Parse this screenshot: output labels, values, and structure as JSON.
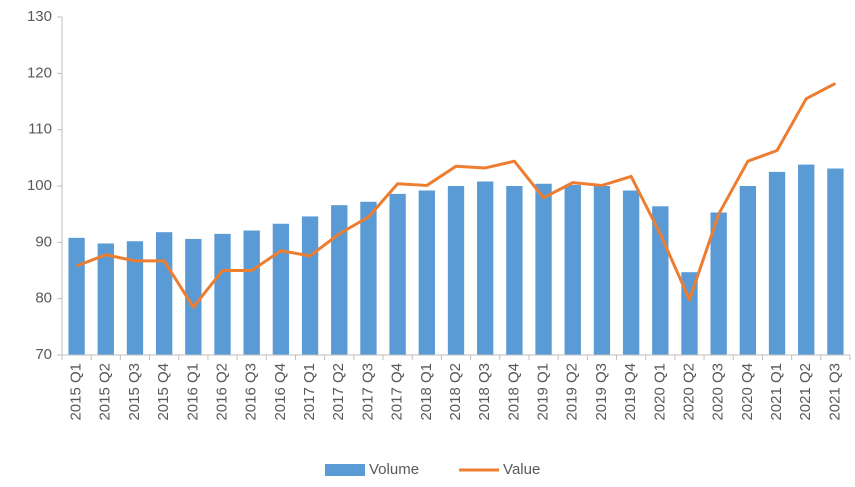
{
  "chart_data": {
    "type": "bar",
    "categories": [
      "2015 Q1",
      "2015 Q2",
      "2015 Q3",
      "2015 Q4",
      "2016 Q1",
      "2016 Q2",
      "2016 Q3",
      "2016 Q4",
      "2017 Q1",
      "2017 Q2",
      "2017 Q3",
      "2017 Q4",
      "2018 Q1",
      "2018 Q2",
      "2018 Q3",
      "2018 Q4",
      "2019 Q1",
      "2019 Q2",
      "2019 Q3",
      "2019 Q4",
      "2020 Q1",
      "2020 Q2",
      "2020 Q3",
      "2020 Q4",
      "2021 Q1",
      "2021 Q2",
      "2021 Q3"
    ],
    "series": [
      {
        "name": "Volume",
        "type": "bar",
        "color": "#5b9bd5",
        "values": [
          90.8,
          89.8,
          90.2,
          91.8,
          90.6,
          91.5,
          92.1,
          93.3,
          94.6,
          96.6,
          97.2,
          98.6,
          99.2,
          100.0,
          100.8,
          100.0,
          100.4,
          100.2,
          100.0,
          99.2,
          96.4,
          84.7,
          95.3,
          100.0,
          102.5,
          103.8,
          103.1
        ]
      },
      {
        "name": "Value",
        "type": "line",
        "color": "#ed7d31",
        "values": [
          85.8,
          87.8,
          86.7,
          86.7,
          78.5,
          85.0,
          85.0,
          88.5,
          87.6,
          91.5,
          94.5,
          100.4,
          100.1,
          103.5,
          103.2,
          104.4,
          97.9,
          100.6,
          100.1,
          101.7,
          91.5,
          79.8,
          95.0,
          104.4,
          106.3,
          115.5,
          118.2
        ]
      }
    ],
    "ylim": [
      70,
      130
    ],
    "yticks": [
      70,
      80,
      90,
      100,
      110,
      120,
      130
    ],
    "legend": "bottom"
  }
}
